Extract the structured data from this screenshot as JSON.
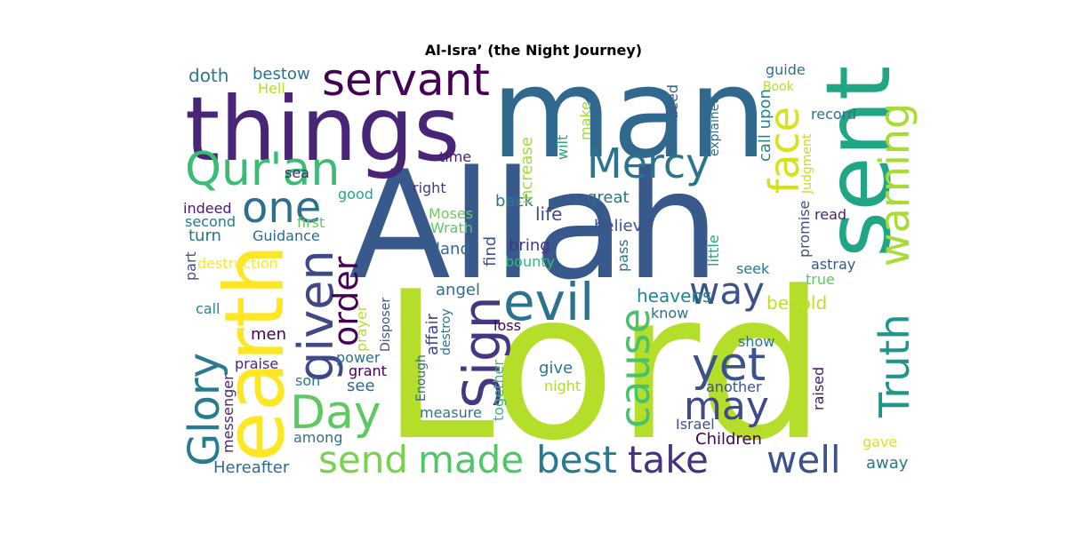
{
  "chart_data": {
    "type": "wordcloud",
    "title": "Al-Isra’ (the Night Journey)",
    "colormap": "viridis",
    "background": "#ffffff",
    "words": [
      {
        "text": "Lord",
        "color": "#b5de2b"
      },
      {
        "text": "Allah",
        "color": "#38598c"
      },
      {
        "text": "man",
        "color": "#31688e"
      },
      {
        "text": "things",
        "color": "#482576"
      },
      {
        "text": "sent",
        "color": "#21a685"
      },
      {
        "text": "earth",
        "color": "#fde725"
      },
      {
        "text": "evil",
        "color": "#2c718e"
      },
      {
        "text": "Qur'an",
        "color": "#3bbb75"
      },
      {
        "text": "servant",
        "color": "#440154"
      },
      {
        "text": "Mercy",
        "color": "#2c738e"
      },
      {
        "text": "warning",
        "color": "#a8db34"
      },
      {
        "text": "face",
        "color": "#d8e219"
      },
      {
        "text": "one",
        "color": "#2d708e"
      },
      {
        "text": "given",
        "color": "#3f4889"
      },
      {
        "text": "Sign",
        "color": "#453781"
      },
      {
        "text": "way",
        "color": "#3b528b"
      },
      {
        "text": "cause",
        "color": "#4ac16d"
      },
      {
        "text": "Truth",
        "color": "#1f968b"
      },
      {
        "text": "order",
        "color": "#440154"
      },
      {
        "text": "Day",
        "color": "#5ec962"
      },
      {
        "text": "Glory",
        "color": "#287c8e"
      },
      {
        "text": "yet",
        "color": "#3b528b"
      },
      {
        "text": "may",
        "color": "#3e4a89"
      },
      {
        "text": "send",
        "color": "#7ad151"
      },
      {
        "text": "made",
        "color": "#52c569"
      },
      {
        "text": "best",
        "color": "#2a788e"
      },
      {
        "text": "take",
        "color": "#46327e"
      },
      {
        "text": "well",
        "color": "#3b528b"
      },
      {
        "text": "behold",
        "color": "#bddf26"
      },
      {
        "text": "heavens",
        "color": "#25858e"
      },
      {
        "text": "angel",
        "color": "#2c718e"
      },
      {
        "text": "believe",
        "color": "#3b528b"
      },
      {
        "text": "life",
        "color": "#3e4989"
      },
      {
        "text": "back",
        "color": "#2a788e"
      },
      {
        "text": "bring",
        "color": "#453781"
      },
      {
        "text": "land",
        "color": "#31688e"
      },
      {
        "text": "find",
        "color": "#3b528b"
      },
      {
        "text": "Moses",
        "color": "#6ccd5a"
      },
      {
        "text": "Wrath",
        "color": "#5ec962"
      },
      {
        "text": "bounty",
        "color": "#35b779"
      },
      {
        "text": "great",
        "color": "#2c718e"
      },
      {
        "text": "right",
        "color": "#443a83"
      },
      {
        "text": "time",
        "color": "#481f70"
      },
      {
        "text": "increase",
        "color": "#a0da39"
      },
      {
        "text": "wilt",
        "color": "#22a884"
      },
      {
        "text": "make",
        "color": "#a2da37"
      },
      {
        "text": "deed",
        "color": "#35608d"
      },
      {
        "text": "call upon",
        "color": "#25848e"
      },
      {
        "text": "explained",
        "color": "#2c728e"
      },
      {
        "text": "guide",
        "color": "#2c728e"
      },
      {
        "text": "Book",
        "color": "#b5de2b"
      },
      {
        "text": "record",
        "color": "#2c718e"
      },
      {
        "text": "Judgment",
        "color": "#c0df25"
      },
      {
        "text": "promise",
        "color": "#3b528b"
      },
      {
        "text": "read",
        "color": "#482475"
      },
      {
        "text": "astray",
        "color": "#39568c"
      },
      {
        "text": "true",
        "color": "#5ec962"
      },
      {
        "text": "little",
        "color": "#22a884"
      },
      {
        "text": "seek",
        "color": "#2a788e"
      },
      {
        "text": "pass",
        "color": "#2c718e"
      },
      {
        "text": "doth",
        "color": "#2a788e"
      },
      {
        "text": "bestow",
        "color": "#2c728e"
      },
      {
        "text": "Hell",
        "color": "#b5de2b"
      },
      {
        "text": "sea",
        "color": "#482878"
      },
      {
        "text": "good",
        "color": "#21a685"
      },
      {
        "text": "indeed",
        "color": "#481a6c"
      },
      {
        "text": "second",
        "color": "#2a788e"
      },
      {
        "text": "first",
        "color": "#5ec962"
      },
      {
        "text": "turn",
        "color": "#2c728e"
      },
      {
        "text": "Guidance",
        "color": "#31688e"
      },
      {
        "text": "destruction",
        "color": "#fde725"
      },
      {
        "text": "part",
        "color": "#3b528b"
      },
      {
        "text": "call",
        "color": "#25848e"
      },
      {
        "text": "men",
        "color": "#440154"
      },
      {
        "text": "prayer",
        "color": "#b8de29"
      },
      {
        "text": "Disposer",
        "color": "#3b528b"
      },
      {
        "text": "affair",
        "color": "#3e4989"
      },
      {
        "text": "destroy",
        "color": "#2c728e"
      },
      {
        "text": "loss",
        "color": "#440154"
      },
      {
        "text": "praise",
        "color": "#482878"
      },
      {
        "text": "power",
        "color": "#2c728e"
      },
      {
        "text": "grant",
        "color": "#440154"
      },
      {
        "text": "son",
        "color": "#2a788e"
      },
      {
        "text": "see",
        "color": "#31688e"
      },
      {
        "text": "messenger",
        "color": "#482878"
      },
      {
        "text": "Enough",
        "color": "#31688e"
      },
      {
        "text": "together",
        "color": "#35b779"
      },
      {
        "text": "give",
        "color": "#2a788e"
      },
      {
        "text": "night",
        "color": "#addc30"
      },
      {
        "text": "measure",
        "color": "#2a788e"
      },
      {
        "text": "among",
        "color": "#2c718e"
      },
      {
        "text": "Hereafter",
        "color": "#31688e"
      },
      {
        "text": "know",
        "color": "#2c718e"
      },
      {
        "text": "show",
        "color": "#2c728e"
      },
      {
        "text": "another",
        "color": "#3b528b"
      },
      {
        "text": "raised",
        "color": "#481769"
      },
      {
        "text": "Israel",
        "color": "#3b528b"
      },
      {
        "text": "Children",
        "color": "#440154"
      },
      {
        "text": "gave",
        "color": "#d8e219"
      },
      {
        "text": "away",
        "color": "#2a788e"
      }
    ]
  }
}
